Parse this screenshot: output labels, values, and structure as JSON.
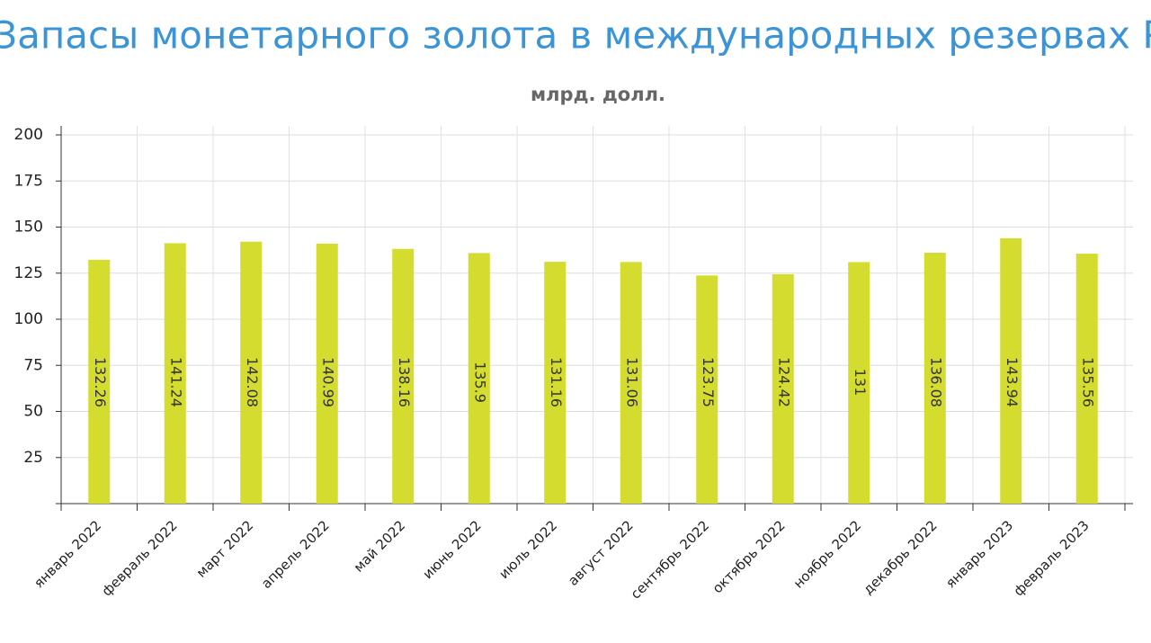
{
  "chart_data": {
    "type": "bar",
    "title": "Запасы монетарного золота в международных резервах РФ",
    "subtitle": "млрд. долл.",
    "categories": [
      "январь 2022",
      "февраль 2022",
      "март 2022",
      "апрель 2022",
      "май 2022",
      "июнь 2022",
      "июль 2022",
      "август 2022",
      "сентябрь 2022",
      "октябрь 2022",
      "ноябрь 2022",
      "декабрь 2022",
      "январь 2023",
      "февраль 2023"
    ],
    "values": [
      132.26,
      141.24,
      142.08,
      140.99,
      138.16,
      135.9,
      131.16,
      131.06,
      123.75,
      124.42,
      131,
      136.08,
      143.94,
      135.56
    ],
    "color": "#d4dc2f",
    "ylim": [
      0,
      200
    ],
    "yticks": [
      25,
      50,
      75,
      100,
      125,
      150,
      175,
      200
    ],
    "grid": true
  }
}
